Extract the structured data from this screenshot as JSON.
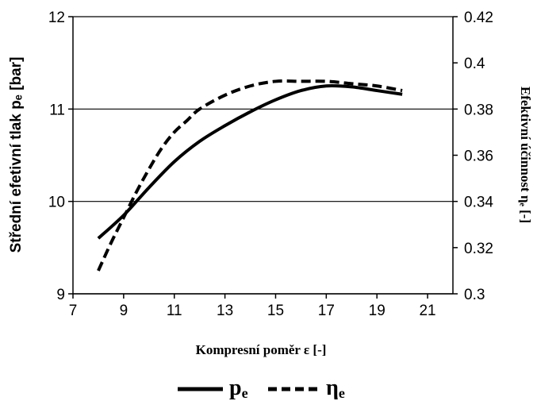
{
  "chart_data": {
    "type": "line",
    "title": "",
    "xlabel": "Kompresní poměr ε [-]",
    "ylabel_left": "Střední efetivní tlak pₑ [bar]",
    "ylabel_right": "Efektivní účinnost ηₑ [-]",
    "xlim": [
      7,
      22
    ],
    "ylim_left": [
      9,
      12
    ],
    "ylim_right": [
      0.3,
      0.42
    ],
    "xticks": [
      "7",
      "9",
      "11",
      "13",
      "15",
      "17",
      "19",
      "21"
    ],
    "yticks_left": [
      "9",
      "10",
      "11",
      "12"
    ],
    "yticks_right": [
      "0.3",
      "0.32",
      "0.34",
      "0.36",
      "0.38",
      "0.4",
      "0.42"
    ],
    "grid": "horizontal",
    "legend_position": "bottom",
    "series": [
      {
        "name": "pe",
        "axis": "left",
        "style": "solid",
        "x": [
          8,
          9,
          10,
          11,
          12,
          13,
          14,
          15,
          16,
          17,
          18,
          19,
          20
        ],
        "y": [
          9.6,
          9.85,
          10.15,
          10.43,
          10.65,
          10.82,
          10.97,
          11.1,
          11.2,
          11.25,
          11.24,
          11.2,
          11.16
        ]
      },
      {
        "name": "ηe",
        "axis": "right",
        "style": "dashed",
        "x": [
          8,
          8.5,
          9,
          9.5,
          10,
          10.5,
          11,
          11.5,
          12,
          13,
          14,
          15,
          16,
          17,
          18,
          19,
          20
        ],
        "y": [
          0.31,
          0.322,
          0.333,
          0.344,
          0.354,
          0.363,
          0.37,
          0.375,
          0.38,
          0.386,
          0.39,
          0.392,
          0.392,
          0.392,
          0.391,
          0.39,
          0.388
        ]
      }
    ],
    "legend": [
      {
        "label": "pe",
        "style": "solid"
      },
      {
        "label": "ηe",
        "style": "dashed"
      }
    ]
  }
}
